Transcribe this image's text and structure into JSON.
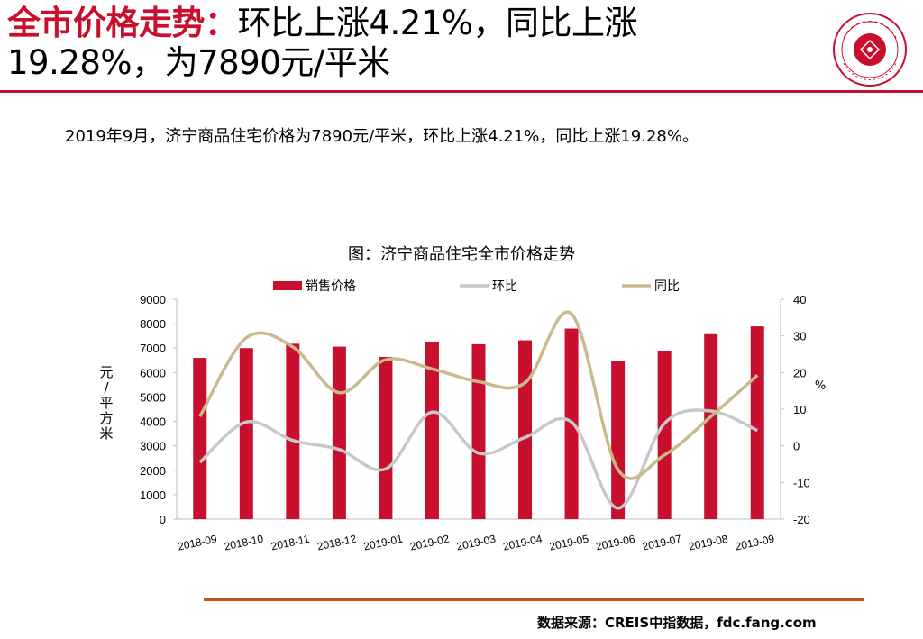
{
  "header": {
    "title_red": "全市价格走势：",
    "title_rest_line1": "环比上涨4.21%，同比上涨",
    "title_line2": "19.28%，为7890元/平米"
  },
  "logo": {
    "icon": "china-index-academy-seal-icon",
    "color": "#c8102e"
  },
  "summary": "2019年9月，济宁商品住宅价格为7890元/平米，环比上涨4.21%，同比上涨19.28%。",
  "chart_title": "图：济宁商品住宅全市价格走势",
  "source": "数据来源：CREIS中指数据，fdc.fang.com",
  "chart_data": {
    "type": "bar",
    "categories": [
      "2018-09",
      "2018-10",
      "2018-11",
      "2018-12",
      "2019-01",
      "2019-02",
      "2019-03",
      "2019-04",
      "2019-05",
      "2019-06",
      "2019-07",
      "2019-08",
      "2019-09"
    ],
    "series": [
      {
        "name": "销售价格",
        "type": "bar",
        "axis": "left",
        "color": "#c8102e",
        "values": [
          6600,
          7000,
          7180,
          7060,
          6640,
          7230,
          7160,
          7320,
          7800,
          6470,
          6870,
          7570,
          7890
        ]
      },
      {
        "name": "环比",
        "type": "line",
        "axis": "right",
        "color": "#c8c8c8",
        "values": [
          -4.5,
          6.5,
          1.5,
          -1.0,
          -6.3,
          9.2,
          -2.0,
          2.3,
          6.5,
          -17.0,
          6.1,
          9.5,
          4.21
        ]
      },
      {
        "name": "同比",
        "type": "line",
        "axis": "right",
        "color": "#c9ba8d",
        "values": [
          8.0,
          29.5,
          27.0,
          14.5,
          23.5,
          21.0,
          17.5,
          17.2,
          36.0,
          -6.5,
          -2.5,
          8.0,
          19.28
        ]
      }
    ],
    "ylabel_left": "元/平方米",
    "ylabel_right": "%",
    "ylim_left": [
      0,
      9000
    ],
    "ylim_right": [
      -20,
      40
    ],
    "yticks_left": [
      0,
      1000,
      2000,
      3000,
      4000,
      5000,
      6000,
      7000,
      8000,
      9000
    ],
    "yticks_right": [
      -20,
      -10,
      0,
      10,
      20,
      30,
      40
    ],
    "legend_position": "top",
    "grid": false
  }
}
